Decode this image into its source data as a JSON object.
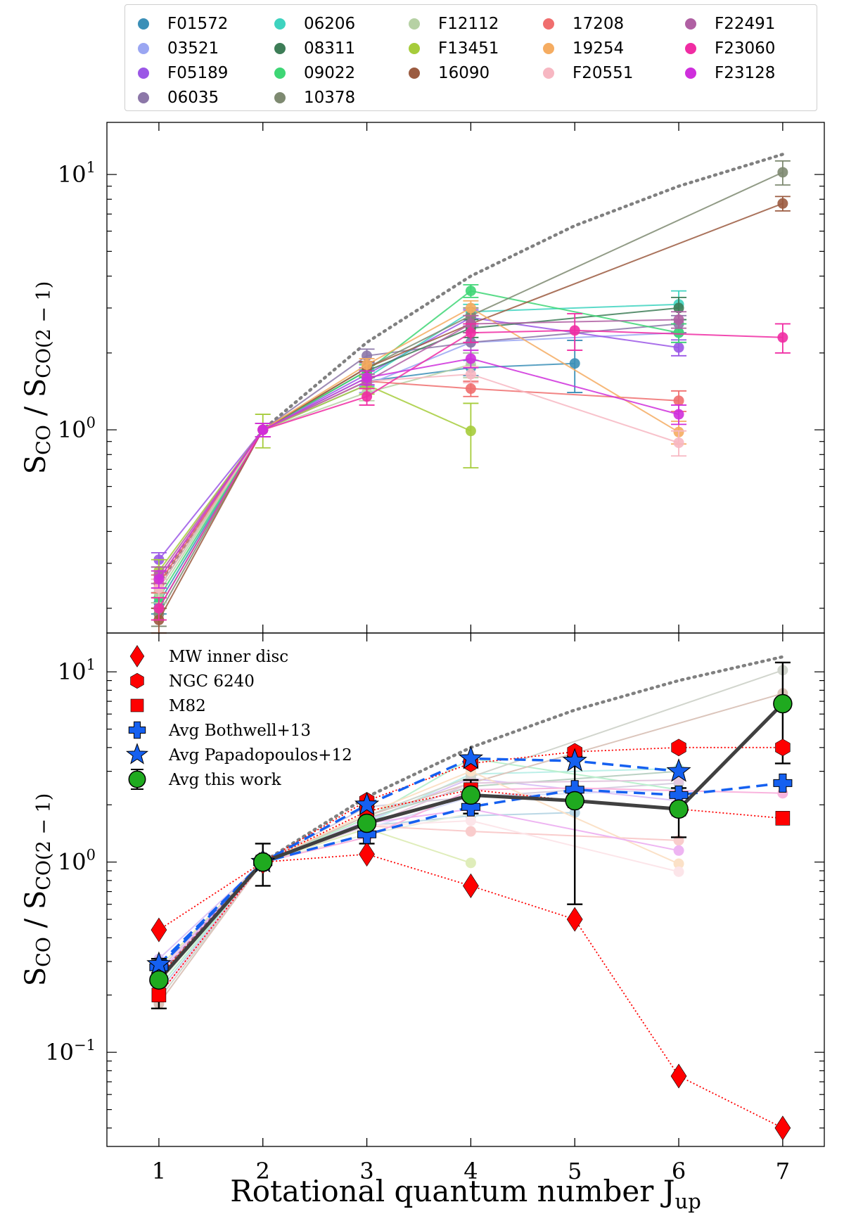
{
  "legend_top": {
    "entries": [
      {
        "name": "F01572",
        "color": "#3b8fb7"
      },
      {
        "name": "03521",
        "color": "#9aa6f2"
      },
      {
        "name": "F05189",
        "color": "#9b57e6"
      },
      {
        "name": "06035",
        "color": "#8c77a8"
      },
      {
        "name": "06206",
        "color": "#3ed3bf"
      },
      {
        "name": "08311",
        "color": "#3d7d57"
      },
      {
        "name": "09022",
        "color": "#3ed675"
      },
      {
        "name": "10378",
        "color": "#7e8a71"
      },
      {
        "name": "F12112",
        "color": "#b6d1a4"
      },
      {
        "name": "F13451",
        "color": "#a6cc3b"
      },
      {
        "name": "16090",
        "color": "#9b5b40"
      },
      {
        "name": "17208",
        "color": "#f06e6e"
      },
      {
        "name": "19254",
        "color": "#f5ac61"
      },
      {
        "name": "F20551",
        "color": "#f7b7c2"
      },
      {
        "name": "F22491",
        "color": "#b060a3"
      },
      {
        "name": "F23060",
        "color": "#f02ca3"
      },
      {
        "name": "F23128",
        "color": "#cf2fdc"
      }
    ]
  },
  "chart_data": [
    {
      "type": "line",
      "panel": "top",
      "ylabel": "SCO / SCO(2−1)",
      "yscale": "log",
      "ylim": [
        0.16,
        16
      ],
      "xlim": [
        0.5,
        7.4
      ],
      "x_ticks": [
        1,
        2,
        3,
        4,
        5,
        6,
        7
      ],
      "y_tick_labels": [
        {
          "value": 1,
          "base": "10",
          "exp": "0"
        },
        {
          "value": 10,
          "base": "10",
          "exp": "1"
        }
      ],
      "reference_line": {
        "style": "dotted",
        "color": "#808080",
        "x": [
          1,
          2,
          3,
          4,
          5,
          6,
          7
        ],
        "y": [
          0.25,
          1,
          2.2,
          4,
          6.3,
          9,
          12
        ]
      },
      "series": [
        {
          "name": "F01572",
          "color": "#3b8fb7",
          "x": [
            1,
            2,
            3,
            4,
            5
          ],
          "y": [
            0.21,
            1,
            1.55,
            1.75,
            1.82
          ],
          "err": [
            0.02,
            0.06,
            0.1,
            0.12,
            0.42
          ]
        },
        {
          "name": "03521",
          "color": "#9aa6f2",
          "x": [
            1,
            2,
            3,
            4,
            6
          ],
          "y": [
            0.26,
            1,
            1.5,
            2.2,
            2.4
          ],
          "err": [
            0.03,
            0.06,
            0.1,
            0.2,
            0.2
          ]
        },
        {
          "name": "F05189",
          "color": "#9b57e6",
          "x": [
            1,
            2,
            3,
            4,
            6
          ],
          "y": [
            0.31,
            1,
            1.65,
            2.75,
            2.1
          ],
          "err": [
            0.02,
            0.06,
            0.1,
            0.2,
            0.15
          ]
        },
        {
          "name": "06035",
          "color": "#8c77a8",
          "x": [
            1,
            2,
            3,
            4,
            6
          ],
          "y": [
            0.25,
            1,
            1.95,
            2.2,
            2.6
          ],
          "err": [
            0.02,
            0.06,
            0.12,
            0.2,
            0.2
          ]
        },
        {
          "name": "06206",
          "color": "#3ed3bf",
          "x": [
            1,
            2,
            3,
            4,
            6
          ],
          "y": [
            0.2,
            1,
            1.6,
            2.9,
            3.1
          ],
          "err": [
            0.02,
            0.06,
            0.12,
            0.2,
            0.4
          ]
        },
        {
          "name": "08311",
          "color": "#3d7d57",
          "x": [
            1,
            2,
            3,
            4,
            6
          ],
          "y": [
            0.24,
            1,
            1.7,
            2.5,
            3.0
          ],
          "err": [
            0.02,
            0.06,
            0.1,
            0.2,
            0.3
          ]
        },
        {
          "name": "09022",
          "color": "#3ed675",
          "x": [
            1,
            2,
            3,
            4,
            6
          ],
          "y": [
            0.22,
            1,
            1.7,
            3.5,
            2.4
          ],
          "err": [
            0.02,
            0.06,
            0.1,
            0.2,
            0.2
          ]
        },
        {
          "name": "10378",
          "color": "#7e8a71",
          "x": [
            1,
            2,
            3,
            4,
            7
          ],
          "y": [
            0.19,
            1,
            1.75,
            2.8,
            10.2
          ],
          "err": [
            0.02,
            0.06,
            0.1,
            0.2,
            1.1
          ]
        },
        {
          "name": "F12112",
          "color": "#b6d1a4",
          "x": [
            1,
            2,
            3,
            4
          ],
          "y": [
            0.23,
            1,
            1.4,
            1.8
          ],
          "err": [
            0.02,
            0.06,
            0.1,
            0.2
          ]
        },
        {
          "name": "F13451",
          "color": "#a6cc3b",
          "x": [
            1,
            2,
            3,
            4
          ],
          "y": [
            0.28,
            1,
            1.5,
            0.99
          ],
          "err": [
            0.03,
            0.15,
            0.12,
            0.28
          ]
        },
        {
          "name": "16090",
          "color": "#9b5b40",
          "x": [
            1,
            2,
            3,
            4,
            7
          ],
          "y": [
            0.18,
            1,
            1.75,
            2.6,
            7.7
          ],
          "err": [
            0.02,
            0.06,
            0.1,
            0.2,
            0.5
          ]
        },
        {
          "name": "17208",
          "color": "#f06e6e",
          "x": [
            1,
            2,
            3,
            4,
            6
          ],
          "y": [
            0.25,
            1,
            1.55,
            1.45,
            1.3
          ],
          "err": [
            0.02,
            0.06,
            0.1,
            0.1,
            0.12
          ]
        },
        {
          "name": "19254",
          "color": "#f5ac61",
          "x": [
            1,
            2,
            3,
            4,
            6
          ],
          "y": [
            0.26,
            1,
            1.8,
            3.0,
            0.98
          ],
          "err": [
            0.02,
            0.06,
            0.1,
            0.2,
            0.1
          ]
        },
        {
          "name": "F20551",
          "color": "#f7b7c2",
          "x": [
            1,
            2,
            3,
            4,
            6
          ],
          "y": [
            0.24,
            1,
            1.55,
            1.65,
            0.89
          ],
          "err": [
            0.02,
            0.06,
            0.1,
            0.12,
            0.1
          ]
        },
        {
          "name": "F22491",
          "color": "#b060a3",
          "x": [
            1,
            2,
            3,
            4,
            6
          ],
          "y": [
            0.27,
            1,
            1.55,
            2.6,
            2.7
          ],
          "err": [
            0.02,
            0.06,
            0.1,
            0.2,
            0.2
          ]
        },
        {
          "name": "F23060",
          "color": "#f02ca3",
          "x": [
            1,
            2,
            3,
            4,
            5,
            7
          ],
          "y": [
            0.2,
            1,
            1.35,
            2.4,
            2.45,
            2.3
          ],
          "err": [
            0.02,
            0.06,
            0.1,
            0.2,
            0.4,
            0.3
          ]
        },
        {
          "name": "F23128",
          "color": "#cf2fdc",
          "x": [
            1,
            2,
            3,
            4,
            6
          ],
          "y": [
            0.26,
            1,
            1.6,
            1.9,
            1.15
          ],
          "err": [
            0.02,
            0.06,
            0.1,
            0.15,
            0.1
          ]
        }
      ]
    },
    {
      "type": "line",
      "panel": "bottom",
      "xlabel": "Rotational quantum number J",
      "xlabel_sub": "up",
      "ylabel": "SCO / SCO(2−1)",
      "yscale": "log",
      "ylim": [
        0.032,
        16
      ],
      "xlim": [
        0.5,
        7.4
      ],
      "x_ticks": [
        1,
        2,
        3,
        4,
        5,
        6,
        7
      ],
      "y_tick_labels": [
        {
          "value": 0.1,
          "base": "10",
          "exp": "−1"
        },
        {
          "value": 1,
          "base": "10",
          "exp": "0"
        },
        {
          "value": 10,
          "base": "10",
          "exp": "1"
        }
      ],
      "reference_line": {
        "style": "dotted",
        "color": "#808080",
        "x": [
          1,
          2,
          3,
          4,
          5,
          6,
          7
        ],
        "y": [
          0.25,
          1,
          2.2,
          4,
          6.3,
          9,
          12
        ]
      },
      "legend": [
        {
          "label": "MW inner disc",
          "marker": "diamond",
          "color": "#ff0000"
        },
        {
          "label": "NGC 6240",
          "marker": "hexagon",
          "color": "#ff0000"
        },
        {
          "label": "M82",
          "marker": "square",
          "color": "#ff0000"
        },
        {
          "label": "Avg Bothwell+13",
          "marker": "plus",
          "color": "#1560f0"
        },
        {
          "label": "Avg Papadopoulos+12",
          "marker": "star",
          "color": "#1560f0"
        },
        {
          "label": "Avg this work",
          "marker": "circle",
          "color": "#1faa1f"
        }
      ],
      "series": [
        {
          "name": "MW inner disc",
          "marker": "diamond",
          "color": "#ff0000",
          "line": "dotted-red",
          "x": [
            1,
            2,
            3,
            4,
            5,
            6,
            7
          ],
          "y": [
            0.44,
            1,
            1.1,
            0.75,
            0.5,
            0.075,
            0.04
          ]
        },
        {
          "name": "NGC 6240",
          "marker": "hexagon",
          "color": "#ff0000",
          "line": "dotted-red",
          "x": [
            1,
            2,
            3,
            4,
            5,
            6,
            7
          ],
          "y": [
            0.25,
            1,
            2.1,
            3.3,
            3.8,
            4.0,
            4.0
          ]
        },
        {
          "name": "M82",
          "marker": "square",
          "color": "#ff0000",
          "line": "dotted-red",
          "x": [
            1,
            2,
            3,
            4,
            5,
            6,
            7
          ],
          "y": [
            0.2,
            1,
            1.85,
            2.4,
            2.1,
            1.9,
            1.7
          ]
        },
        {
          "name": "Avg Bothwell+13",
          "marker": "plus",
          "color": "#1560f0",
          "line": "dashed-blue",
          "x": [
            1,
            2,
            3,
            4,
            5,
            6,
            7
          ],
          "y": [
            0.28,
            1,
            1.4,
            1.95,
            2.4,
            2.25,
            2.6
          ]
        },
        {
          "name": "Avg Papadopoulos+12",
          "marker": "star",
          "color": "#1560f0",
          "line": "dashed-blue",
          "x": [
            1,
            2,
            3,
            4,
            5,
            6
          ],
          "y": [
            0.29,
            1,
            2.0,
            3.5,
            3.4,
            3.0
          ]
        },
        {
          "name": "Avg this work",
          "marker": "circle",
          "color": "#1faa1f",
          "line": "solid-grey",
          "x": [
            1,
            2,
            3,
            4,
            5,
            6,
            7
          ],
          "y": [
            0.24,
            1,
            1.6,
            2.25,
            2.1,
            1.9,
            6.8
          ],
          "err_lo": [
            0.07,
            0.25,
            0.35,
            0.45,
            1.5,
            0.55,
            3.5
          ],
          "err_hi": [
            0.07,
            0.25,
            0.35,
            0.45,
            1.5,
            0.55,
            4.4
          ]
        }
      ]
    }
  ]
}
